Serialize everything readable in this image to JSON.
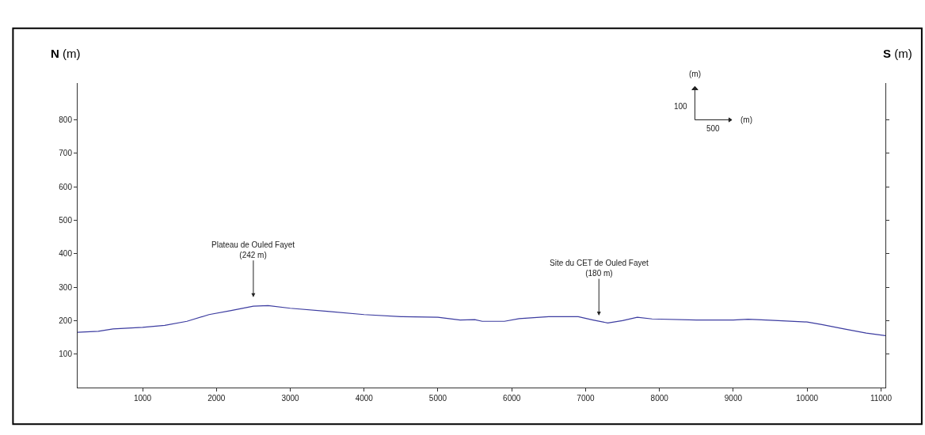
{
  "chart_data": {
    "type": "line",
    "xlabel": null,
    "ylabel": "N (m)",
    "y2label": "S (m)",
    "x": [
      120,
      400,
      600,
      1000,
      1300,
      1600,
      1900,
      2200,
      2500,
      2700,
      3000,
      3500,
      4000,
      4500,
      5000,
      5300,
      5500,
      5600,
      5900,
      6100,
      6500,
      6900,
      7100,
      7300,
      7500,
      7700,
      7900,
      8500,
      9000,
      9200,
      9500,
      10000,
      10200,
      10500,
      10800,
      11060
    ],
    "series": [
      {
        "color": "#3c3ca0",
        "values": [
          165,
          168,
          175,
          180,
          186,
          198,
          218,
          230,
          243,
          245,
          237,
          228,
          218,
          212,
          210,
          202,
          203,
          198,
          198,
          206,
          212,
          212,
          202,
          193,
          200,
          210,
          205,
          202,
          202,
          204,
          201,
          196,
          188,
          175,
          163,
          155
        ]
      }
    ],
    "xlim": [
      120,
      11060
    ],
    "xticks": [
      1000,
      2000,
      3000,
      4000,
      5000,
      6000,
      7000,
      8000,
      9000,
      10000,
      11000
    ],
    "ylim": [
      0,
      910
    ],
    "yticks": [
      100,
      200,
      300,
      400,
      500,
      600,
      700,
      800
    ],
    "annotations": [
      "Plateau de Ouled Fayet\n(242 m)",
      "Site du CET de Ouled Fayet\n(180 m)",
      "(m)",
      "100",
      "500",
      "(m)"
    ],
    "marker": "none",
    "line_style": "solid"
  }
}
